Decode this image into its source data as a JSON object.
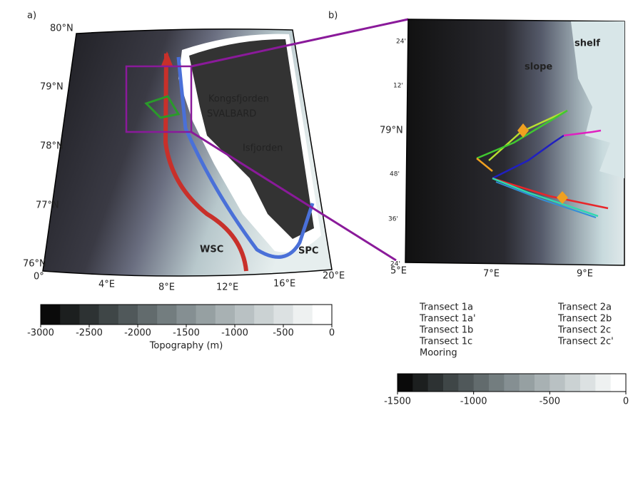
{
  "panel_a": {
    "label": "a)",
    "lat_labels": [
      "80°N",
      "79°N",
      "78°N",
      "77°N",
      "76°N"
    ],
    "lon_labels": [
      "0°",
      "4°E",
      "8°E",
      "12°E",
      "16°E",
      "20°E"
    ],
    "places": [
      "Kongsfjorden",
      "SVALBARD",
      "Isfjorden"
    ],
    "currents": [
      {
        "name": "WSC",
        "color": "#c8302a"
      },
      {
        "name": "SPC",
        "color": "#4a70d8"
      }
    ],
    "colorbar": {
      "lim": [
        -3000,
        0
      ],
      "ticks": [
        -3000,
        -2500,
        -2000,
        -1500,
        -1000,
        -500,
        0
      ],
      "label": "Topography (m)"
    }
  },
  "panel_b": {
    "label": "b)",
    "lat_labels": [
      "24'",
      "12'",
      "79°N",
      "48'",
      "36'",
      "24'"
    ],
    "lon_labels": [
      "5°E",
      "7°E",
      "9°E"
    ],
    "regions": [
      "shelf",
      "slope"
    ],
    "legend": [
      {
        "name": "Transect 1a",
        "color": "#e8262a"
      },
      {
        "name": "Transect 1a'",
        "color": "#f0a020"
      },
      {
        "name": "Transect 1b",
        "color": "#30d8b0"
      },
      {
        "name": "Transect 1c",
        "color": "#3090d8"
      },
      {
        "name": "Mooring",
        "color": "#b030c0"
      },
      {
        "name": "Transect 2a",
        "color": "#b8e030"
      },
      {
        "name": "Transect 2b",
        "color": "#40c830"
      },
      {
        "name": "Transect 2c",
        "color": "#2020c0"
      },
      {
        "name": "Transect 2c'",
        "color": "#e020c0"
      }
    ],
    "colorbar": {
      "lim": [
        -1500,
        0
      ],
      "ticks": [
        -1500,
        -1000,
        -500,
        0
      ]
    }
  }
}
